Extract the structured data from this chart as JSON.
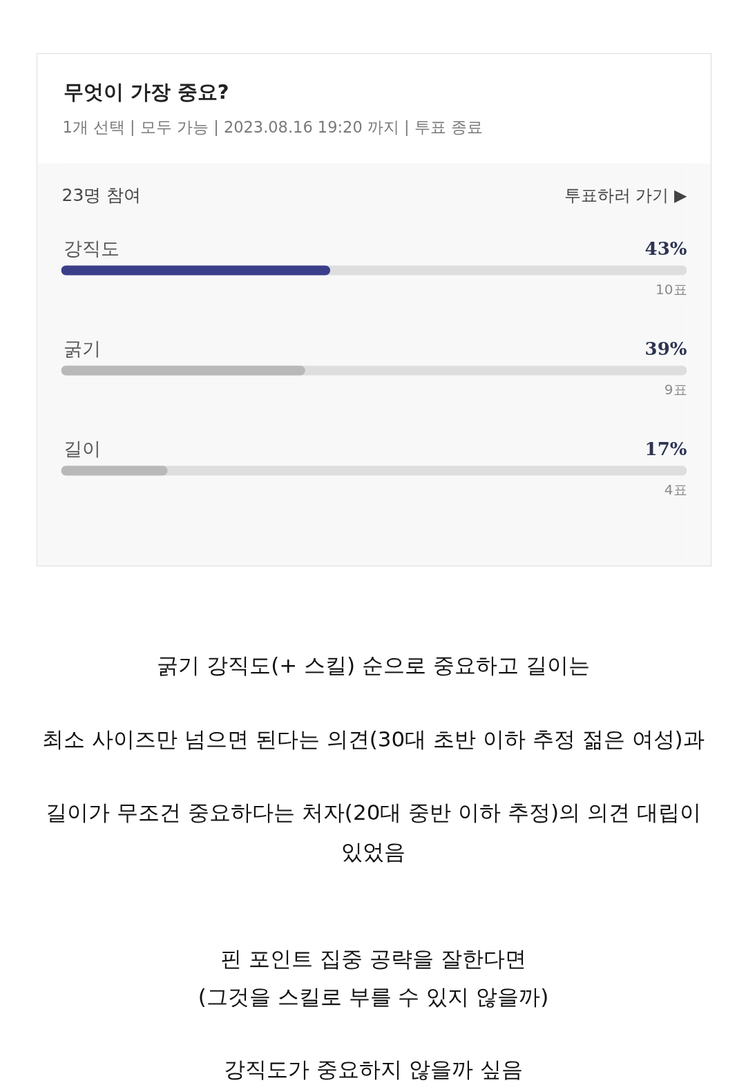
{
  "chart_data": {
    "type": "bar",
    "orientation": "horizontal",
    "title": "무엇이 가장 중요?",
    "subtitle": "1개 선택 | 모두 가능 | 2023.08.16 19:20 까지 | 투표 종료",
    "categories": [
      "강직도",
      "굵기",
      "길이"
    ],
    "values": [
      43,
      39,
      17
    ],
    "colors": [
      "#3b3f8a",
      "#b9b9b9",
      "#b9b9b9"
    ],
    "value_labels": [
      "43%",
      "39%",
      "17%"
    ],
    "xlim": [
      0,
      100
    ],
    "tick_labels": false,
    "annotations": [
      "23명 참여",
      "투표하러 가기 ▶",
      "10표",
      "9표",
      "4표",
      "굵기 강직도(+ 스킬) 순으로 중요하고 길이는",
      "최소 사이즈만 넘으면 된다는 의견(30대 초반 이하 추정 젊은 여성)과",
      "길이가 무조건 중요하다는 처자(20대 중반 이하 추정)의 의견 대립이\n있었음",
      "핀 포인트 집중 공략을 잘한다면",
      "(그것을 스킬로 부를 수 있지 않을까)",
      "강직도가 중요하지 않을까 싶음"
    ]
  }
}
